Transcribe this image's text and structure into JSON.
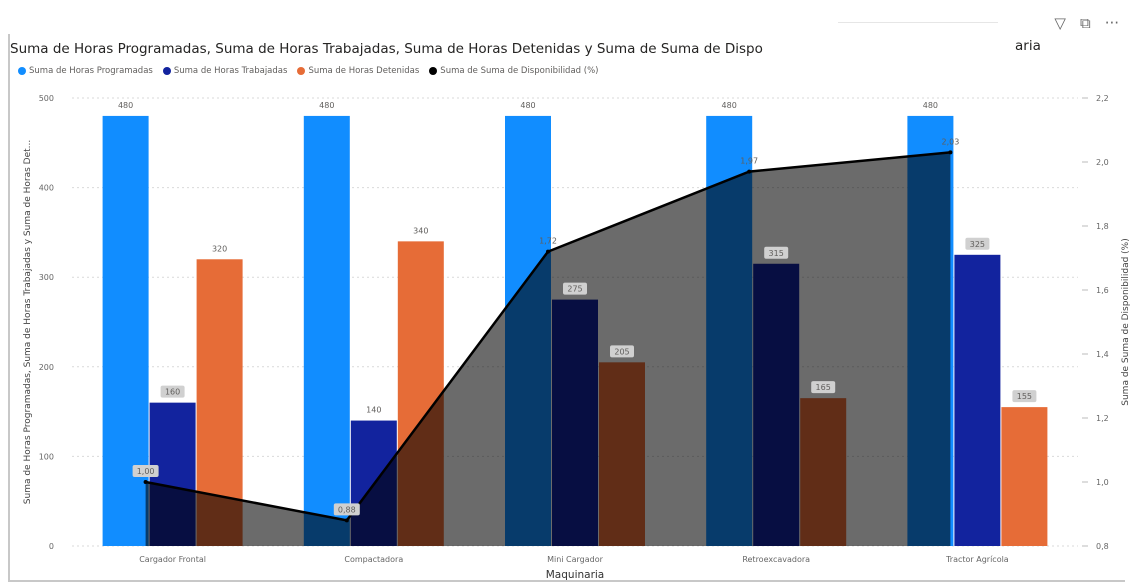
{
  "toolbar": {
    "filter_icon": "filter-icon",
    "focus_icon": "focus-mode-icon",
    "more_icon": "more-options-icon",
    "more_label": "···"
  },
  "title": {
    "visible": "Suma de Horas Programadas, Suma de Horas Trabajadas, Suma de Horas Detenidas y Suma de Suma de Dispo",
    "tail": "aria"
  },
  "legend": [
    {
      "label": "Suma de Horas Programadas",
      "color": "#118DFF"
    },
    {
      "label": "Suma de Horas Trabajadas",
      "color": "#12239E"
    },
    {
      "label": "Suma de Horas Detenidas",
      "color": "#E66C37"
    },
    {
      "label": "Suma de Suma de Disponibilidad (%)",
      "color": "#000000"
    }
  ],
  "chart_data": {
    "type": "bar",
    "categories": [
      "Cargador Frontal",
      "Compactadora",
      "Mini Cargador",
      "Retroexcavadora",
      "Tractor Agrícola"
    ],
    "series": [
      {
        "name": "Suma de Horas Programadas",
        "values": [
          480,
          480,
          480,
          480,
          480
        ],
        "color": "#118DFF",
        "axis": "left"
      },
      {
        "name": "Suma de Horas Trabajadas",
        "values": [
          160,
          140,
          275,
          315,
          325
        ],
        "color": "#12239E",
        "axis": "left"
      },
      {
        "name": "Suma de Horas Detenidas",
        "values": [
          320,
          340,
          205,
          165,
          155
        ],
        "color": "#E66C37",
        "axis": "left"
      },
      {
        "name": "Suma de Suma de Disponibilidad (%)",
        "type": "line",
        "values": [
          1.0,
          0.88,
          1.72,
          1.97,
          2.03
        ],
        "color": "#000000",
        "axis": "right"
      }
    ],
    "data_labels": [
      [
        "480",
        "480",
        "480",
        "480",
        "480"
      ],
      [
        "160",
        "140",
        "275",
        "315",
        "325"
      ],
      [
        "320",
        "340",
        "205",
        "165",
        "155"
      ],
      [
        "1,00",
        "0,88",
        "1,72",
        "1,97",
        "2,03"
      ]
    ],
    "xlabel": "Maquinaria",
    "ylabel": "Suma de Horas Programadas, Suma de Horas Trabajadas y Suma de Horas Det...",
    "y2label": "Suma de Suma de Disponibilidad (%)",
    "ylim": [
      0,
      500
    ],
    "yticks": [
      0,
      100,
      200,
      300,
      400,
      500
    ],
    "y2lim": [
      0.8,
      2.2
    ],
    "y2ticks": [
      "0,8",
      "1,0",
      "1,2",
      "1,4",
      "1,6",
      "1,8",
      "2,0",
      "2,2"
    ],
    "grid": true,
    "legend_position": "top-left"
  }
}
